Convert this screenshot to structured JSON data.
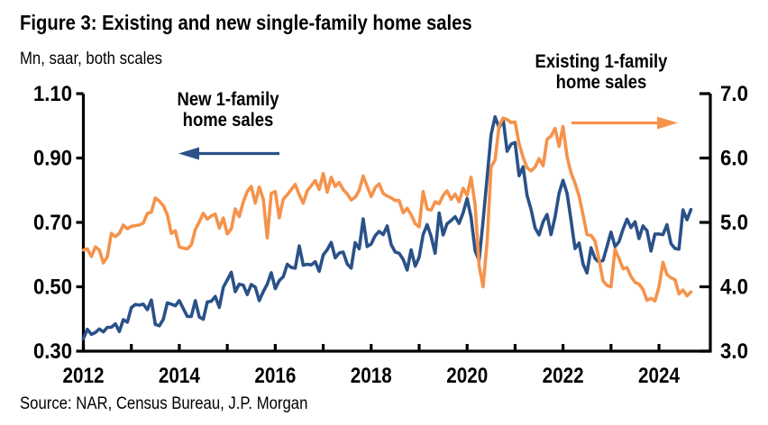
{
  "header": {
    "title": "Figure 3: Existing and new single-family home sales",
    "subtitle": "Mn, saar, both scales"
  },
  "source": {
    "text": "Source: NAR, Census Bureau, J.P. Morgan"
  },
  "annotations": {
    "new_home": {
      "line1": "New 1-family",
      "line2": "home sales",
      "arrow_direction": "left",
      "color": "#2A5188"
    },
    "existing_home": {
      "line1": "Existing 1-family",
      "line2": "home sales",
      "arrow_direction": "right",
      "color": "#F5934B"
    }
  },
  "chart_data": {
    "type": "line",
    "title": "Figure 3: Existing and new single-family home sales",
    "units_label": "Mn, saar, both scales",
    "x_unit": "decimal_year_monthly",
    "x_start": 2012.0,
    "x_step": 0.0833333,
    "x_axis": {
      "major_tick_years": [
        2012,
        2014,
        2016,
        2018,
        2020,
        2022,
        2024
      ],
      "major_tick_labels": [
        "2012",
        "2014",
        "2016",
        "2018",
        "2020",
        "2022",
        "2024"
      ],
      "minor_tick_years": [
        2013,
        2015,
        2017,
        2019,
        2021,
        2023
      ]
    },
    "left_axis": {
      "min": 0.3,
      "max": 1.1,
      "tick_values": [
        1.1,
        0.9,
        0.7,
        0.5,
        0.3
      ],
      "tick_labels": [
        "1.10",
        "0.90",
        "0.70",
        "0.50",
        "0.30"
      ]
    },
    "right_axis": {
      "min": 3.0,
      "max": 7.0,
      "tick_values": [
        7.0,
        6.0,
        5.0,
        4.0,
        3.0
      ],
      "tick_labels": [
        "7.0",
        "6.0",
        "5.0",
        "4.0",
        "3.0"
      ]
    },
    "grid": false,
    "legend": "in-plot text annotations with arrows",
    "series": [
      {
        "name": "New 1-family home sales",
        "axis": "left",
        "color": "#2A5188",
        "values": [
          0.339,
          0.368,
          0.352,
          0.358,
          0.369,
          0.36,
          0.374,
          0.374,
          0.385,
          0.361,
          0.398,
          0.39,
          0.435,
          0.445,
          0.443,
          0.446,
          0.429,
          0.459,
          0.383,
          0.379,
          0.399,
          0.45,
          0.446,
          0.441,
          0.457,
          0.432,
          0.408,
          0.408,
          0.457,
          0.406,
          0.399,
          0.453,
          0.455,
          0.47,
          0.436,
          0.498,
          0.521,
          0.545,
          0.485,
          0.508,
          0.505,
          0.476,
          0.507,
          0.499,
          0.457,
          0.485,
          0.508,
          0.544,
          0.494,
          0.519,
          0.531,
          0.57,
          0.56,
          0.558,
          0.627,
          0.567,
          0.57,
          0.568,
          0.578,
          0.548,
          0.599,
          0.615,
          0.638,
          0.59,
          0.605,
          0.608,
          0.571,
          0.558,
          0.637,
          0.618,
          0.711,
          0.625,
          0.633,
          0.659,
          0.672,
          0.662,
          0.689,
          0.631,
          0.608,
          0.604,
          0.585,
          0.552,
          0.615,
          0.564,
          0.592,
          0.662,
          0.693,
          0.656,
          0.604,
          0.729,
          0.661,
          0.696,
          0.706,
          0.718,
          0.697,
          0.73,
          0.774,
          0.716,
          0.612,
          0.582,
          0.704,
          0.84,
          0.972,
          1.028,
          0.994,
          1.022,
          0.921,
          0.943,
          0.948,
          0.845,
          0.873,
          0.784,
          0.74,
          0.683,
          0.661,
          0.702,
          0.725,
          0.662,
          0.717,
          0.79,
          0.831,
          0.79,
          0.707,
          0.619,
          0.636,
          0.571,
          0.543,
          0.621,
          0.588,
          0.577,
          0.582,
          0.625,
          0.67,
          0.625,
          0.64,
          0.679,
          0.71,
          0.684,
          0.702,
          0.65,
          0.689,
          0.674,
          0.611,
          0.664,
          0.664,
          0.662,
          0.693,
          0.634,
          0.619,
          0.617,
          0.739,
          0.708,
          0.74
        ]
      },
      {
        "name": "Existing 1-family home sales",
        "axis": "right",
        "color": "#F5934B",
        "values": [
          4.57,
          4.59,
          4.47,
          4.62,
          4.57,
          4.37,
          4.47,
          4.83,
          4.78,
          4.83,
          4.96,
          4.9,
          4.94,
          4.95,
          4.96,
          4.99,
          5.14,
          5.16,
          5.38,
          5.33,
          5.26,
          5.12,
          4.83,
          4.87,
          4.62,
          4.6,
          4.59,
          4.65,
          4.89,
          5.01,
          5.14,
          5.05,
          5.1,
          5.13,
          4.91,
          5.07,
          4.82,
          4.9,
          5.21,
          5.09,
          5.32,
          5.48,
          5.56,
          5.3,
          5.55,
          5.36,
          4.76,
          5.45,
          5.48,
          5.07,
          5.36,
          5.43,
          5.51,
          5.59,
          5.43,
          5.3,
          5.49,
          5.57,
          5.65,
          5.51,
          5.76,
          5.47,
          5.7,
          5.56,
          5.62,
          5.51,
          5.44,
          5.35,
          5.39,
          5.5,
          5.72,
          5.56,
          5.4,
          5.54,
          5.6,
          5.45,
          5.41,
          5.38,
          5.34,
          5.34,
          5.15,
          5.22,
          5.12,
          4.98,
          4.93,
          5.48,
          5.21,
          5.19,
          5.32,
          5.29,
          5.42,
          5.49,
          5.36,
          5.44,
          5.32,
          5.53,
          5.42,
          5.7,
          5.27,
          4.33,
          4.0,
          4.7,
          5.86,
          5.97,
          6.5,
          6.62,
          6.6,
          6.55,
          6.56,
          6.22,
          6.01,
          5.85,
          5.8,
          5.86,
          5.99,
          5.88,
          6.29,
          6.34,
          6.46,
          6.18,
          6.49,
          6.02,
          5.77,
          5.61,
          5.41,
          5.12,
          4.81,
          4.8,
          4.71,
          4.43,
          4.09,
          4.02,
          4.0,
          4.58,
          4.44,
          4.28,
          4.3,
          4.16,
          4.07,
          4.04,
          3.96,
          3.79,
          3.82,
          3.78,
          4.0,
          4.38,
          4.19,
          4.14,
          4.11,
          3.89,
          3.95,
          3.86,
          3.92
        ]
      }
    ]
  }
}
